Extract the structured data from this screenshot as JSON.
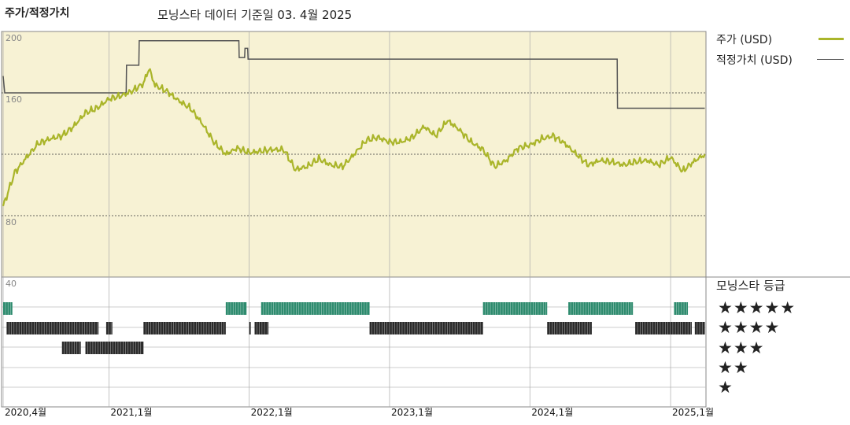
{
  "header": {
    "title": "주가/적정가치",
    "subtitle": "모닝스타 데이터 기준일 03. 4월 2025"
  },
  "legend": {
    "price_label": "주가 (USD)",
    "fair_label": "적정가치 (USD)",
    "price_color": "#aab52a",
    "fair_color": "#555555"
  },
  "rating_panel": {
    "title": "모닝스타 등급",
    "stars": [
      "★★★★★",
      "★★★★",
      "★★★",
      "★★",
      "★"
    ],
    "colors": {
      "5": "#2e8b6e",
      "4": "#2a2a2a",
      "3": "#2a2a2a"
    }
  },
  "chart_data": {
    "type": "line",
    "title": "주가/적정가치",
    "subtitle": "모닝스타 데이터 기준일 03. 4월 2025",
    "x_tick_labels": [
      "2020,4월",
      "2021,1월",
      "2022,1월",
      "2023,1월",
      "2024,1월",
      "2025,1월"
    ],
    "x_tick_dates": [
      "2020-04-01",
      "2021-01-01",
      "2022-01-01",
      "2023-01-01",
      "2024-01-01",
      "2025-01-01"
    ],
    "x_range": [
      "2020-04-01",
      "2025-04-03"
    ],
    "y_ticks": [
      40,
      80,
      120,
      160,
      200
    ],
    "y_tick_labels_shown": [
      "40",
      "80",
      "160",
      "200"
    ],
    "ylim": [
      40,
      200
    ],
    "grid": true,
    "legend_position": "right",
    "series": [
      {
        "name": "적정가치 (USD)",
        "style": "step",
        "points": [
          [
            "2020-04-01",
            171
          ],
          [
            "2020-04-05",
            160
          ],
          [
            "2021-02-15",
            160
          ],
          [
            "2021-02-16",
            178
          ],
          [
            "2021-03-20",
            178
          ],
          [
            "2021-03-21",
            194
          ],
          [
            "2021-12-05",
            194
          ],
          [
            "2021-12-06",
            183
          ],
          [
            "2021-12-20",
            183
          ],
          [
            "2021-12-21",
            189
          ],
          [
            "2021-12-28",
            189
          ],
          [
            "2021-12-29",
            182
          ],
          [
            "2024-08-15",
            182
          ],
          [
            "2024-08-16",
            150
          ],
          [
            "2025-03-31",
            150
          ]
        ]
      },
      {
        "name": "주가 (USD)",
        "points": [
          [
            "2020-04-01",
            86
          ],
          [
            "2020-05-01",
            108
          ],
          [
            "2020-06-01",
            118
          ],
          [
            "2020-07-01",
            127
          ],
          [
            "2020-08-01",
            130
          ],
          [
            "2020-09-01",
            132
          ],
          [
            "2020-10-01",
            138
          ],
          [
            "2020-11-01",
            147
          ],
          [
            "2020-12-01",
            150
          ],
          [
            "2021-01-01",
            156
          ],
          [
            "2021-02-01",
            158
          ],
          [
            "2021-03-01",
            161
          ],
          [
            "2021-04-01",
            166
          ],
          [
            "2021-04-15",
            176
          ],
          [
            "2021-05-01",
            165
          ],
          [
            "2021-06-01",
            161
          ],
          [
            "2021-07-01",
            155
          ],
          [
            "2021-08-01",
            150
          ],
          [
            "2021-09-01",
            140
          ],
          [
            "2021-10-01",
            128
          ],
          [
            "2021-11-01",
            120
          ],
          [
            "2021-12-01",
            124
          ],
          [
            "2022-01-01",
            121
          ],
          [
            "2022-02-01",
            122
          ],
          [
            "2022-03-01",
            123
          ],
          [
            "2022-04-01",
            123
          ],
          [
            "2022-05-01",
            110
          ],
          [
            "2022-06-01",
            112
          ],
          [
            "2022-07-01",
            117
          ],
          [
            "2022-08-01",
            113
          ],
          [
            "2022-09-01",
            112
          ],
          [
            "2022-10-01",
            120
          ],
          [
            "2022-11-01",
            129
          ],
          [
            "2022-12-01",
            131
          ],
          [
            "2023-01-01",
            128
          ],
          [
            "2023-02-01",
            128
          ],
          [
            "2023-03-01",
            131
          ],
          [
            "2023-04-01",
            138
          ],
          [
            "2023-05-01",
            132
          ],
          [
            "2023-06-01",
            142
          ],
          [
            "2023-07-01",
            136
          ],
          [
            "2023-08-01",
            128
          ],
          [
            "2023-09-01",
            123
          ],
          [
            "2023-10-01",
            112
          ],
          [
            "2023-11-01",
            116
          ],
          [
            "2023-12-01",
            124
          ],
          [
            "2024-01-01",
            126
          ],
          [
            "2024-02-01",
            130
          ],
          [
            "2024-03-01",
            132
          ],
          [
            "2024-04-01",
            127
          ],
          [
            "2024-05-01",
            120
          ],
          [
            "2024-06-01",
            113
          ],
          [
            "2024-07-01",
            116
          ],
          [
            "2024-08-01",
            115
          ],
          [
            "2024-09-01",
            113
          ],
          [
            "2024-10-01",
            115
          ],
          [
            "2024-11-01",
            116
          ],
          [
            "2024-12-01",
            113
          ],
          [
            "2025-01-01",
            118
          ],
          [
            "2025-02-01",
            109
          ],
          [
            "2025-03-01",
            115
          ],
          [
            "2025-03-31",
            120
          ]
        ]
      }
    ],
    "ratings": {
      "5": [
        [
          "2020-04-01",
          "2020-04-25"
        ],
        [
          "2021-11-01",
          "2021-12-25"
        ],
        [
          "2022-02-01",
          "2022-11-10"
        ],
        [
          "2023-09-01",
          "2024-02-15"
        ],
        [
          "2024-04-10",
          "2024-09-25"
        ],
        [
          "2025-01-10",
          "2025-02-15"
        ]
      ],
      "4": [
        [
          "2020-04-10",
          "2020-12-05"
        ],
        [
          "2020-12-25",
          "2021-01-10"
        ],
        [
          "2021-04-01",
          "2021-11-01"
        ],
        [
          "2022-01-01",
          "2022-01-05"
        ],
        [
          "2022-01-15",
          "2022-02-20"
        ],
        [
          "2022-11-10",
          "2023-09-01"
        ],
        [
          "2024-02-15",
          "2024-06-10"
        ],
        [
          "2024-10-01",
          "2025-02-25"
        ],
        [
          "2025-03-05",
          "2025-03-31"
        ]
      ],
      "3": [
        [
          "2020-09-01",
          "2020-10-20"
        ],
        [
          "2020-11-01",
          "2021-04-01"
        ]
      ]
    }
  }
}
